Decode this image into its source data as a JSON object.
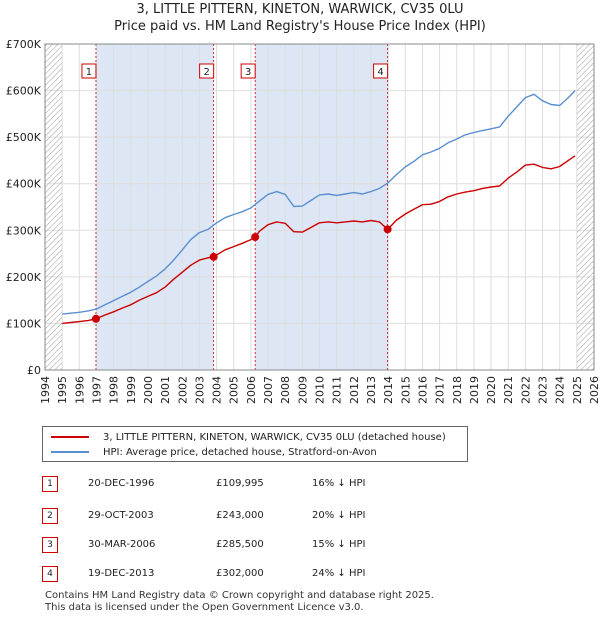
{
  "title_line1": "3, LITTLE PITTERN, KINETON, WARWICK, CV35 0LU",
  "title_line2": "Price paid vs. HM Land Registry's House Price Index (HPI)",
  "colors": {
    "price_paid": "#cc0000",
    "hpi": "#5a8fd0",
    "shade": "#dde6f5",
    "grid": "#dddddd"
  },
  "chart_data": {
    "type": "line",
    "xlim": [
      1994,
      2026
    ],
    "ylim": [
      0,
      700000
    ],
    "yticks": [
      0,
      100000,
      200000,
      300000,
      400000,
      500000,
      600000,
      700000
    ],
    "ytick_labels": [
      "£0",
      "£100K",
      "£200K",
      "£300K",
      "£400K",
      "£500K",
      "£600K",
      "£700K"
    ],
    "xticks": [
      1994,
      1995,
      1996,
      1997,
      1998,
      1999,
      2000,
      2001,
      2002,
      2003,
      2004,
      2005,
      2006,
      2007,
      2008,
      2009,
      2010,
      2011,
      2012,
      2013,
      2014,
      2015,
      2016,
      2017,
      2018,
      2019,
      2020,
      2021,
      2022,
      2023,
      2024,
      2025,
      2026
    ],
    "data_range": [
      1995,
      2025
    ],
    "shaded_spans": [
      [
        1996.97,
        2003.83
      ],
      [
        2006.25,
        2013.97
      ]
    ],
    "series": [
      {
        "name": "3, LITTLE PITTERN, KINETON, WARWICK, CV35 0LU (detached house)",
        "x": [
          1995.0,
          1995.5,
          1996.0,
          1996.5,
          1996.97,
          1997.5,
          1998.0,
          1998.5,
          1999.0,
          1999.5,
          2000.0,
          2000.5,
          2001.0,
          2001.5,
          2002.0,
          2002.5,
          2003.0,
          2003.5,
          2003.83,
          2004.5,
          2005.0,
          2005.5,
          2006.0,
          2006.25,
          2006.5,
          2007.0,
          2007.5,
          2008.0,
          2008.5,
          2009.0,
          2009.5,
          2010.0,
          2010.5,
          2011.0,
          2011.5,
          2012.0,
          2012.5,
          2013.0,
          2013.5,
          2013.97,
          2014.5,
          2015.0,
          2015.5,
          2016.0,
          2016.5,
          2017.0,
          2017.5,
          2018.0,
          2018.5,
          2019.0,
          2019.5,
          2020.0,
          2020.5,
          2021.0,
          2021.5,
          2022.0,
          2022.5,
          2023.0,
          2023.5,
          2024.0,
          2024.5,
          2024.9
        ],
        "values": [
          100000,
          102000,
          104000,
          106000,
          109995,
          118000,
          125000,
          133000,
          140000,
          150000,
          158000,
          166000,
          178000,
          195000,
          210000,
          225000,
          236000,
          241000,
          243000,
          258000,
          265000,
          272000,
          280000,
          285500,
          298000,
          312000,
          318000,
          315000,
          297000,
          296000,
          306000,
          316000,
          318000,
          316000,
          318000,
          320000,
          318000,
          321000,
          318000,
          302000,
          322000,
          335000,
          345000,
          355000,
          356000,
          362000,
          372000,
          378000,
          382000,
          385000,
          390000,
          393000,
          395000,
          412000,
          425000,
          440000,
          442000,
          435000,
          432000,
          437000,
          450000,
          460000
        ]
      },
      {
        "name": "HPI: Average price, detached house, Stratford-on-Avon",
        "x": [
          1995.0,
          1995.5,
          1996.0,
          1996.5,
          1997.0,
          1997.5,
          1998.0,
          1998.5,
          1999.0,
          1999.5,
          2000.0,
          2000.5,
          2001.0,
          2001.5,
          2002.0,
          2002.5,
          2003.0,
          2003.5,
          2004.0,
          2004.5,
          2005.0,
          2005.5,
          2006.0,
          2006.5,
          2007.0,
          2007.5,
          2008.0,
          2008.5,
          2009.0,
          2009.5,
          2010.0,
          2010.5,
          2011.0,
          2011.5,
          2012.0,
          2012.5,
          2013.0,
          2013.5,
          2014.0,
          2014.5,
          2015.0,
          2015.5,
          2016.0,
          2016.5,
          2017.0,
          2017.5,
          2018.0,
          2018.5,
          2019.0,
          2019.5,
          2020.0,
          2020.5,
          2021.0,
          2021.5,
          2022.0,
          2022.5,
          2023.0,
          2023.5,
          2024.0,
          2024.5,
          2024.9
        ],
        "values": [
          120000,
          122000,
          124000,
          127000,
          131000,
          140000,
          149000,
          158000,
          167000,
          178000,
          190000,
          202000,
          217000,
          236000,
          258000,
          280000,
          295000,
          302000,
          316000,
          327000,
          334000,
          340000,
          348000,
          363000,
          377000,
          383000,
          377000,
          351000,
          352000,
          364000,
          376000,
          378000,
          375000,
          378000,
          381000,
          378000,
          383000,
          390000,
          402000,
          420000,
          436000,
          448000,
          462000,
          468000,
          476000,
          488000,
          496000,
          505000,
          510000,
          514000,
          518000,
          522000,
          545000,
          565000,
          585000,
          592000,
          578000,
          570000,
          568000,
          585000,
          600000
        ]
      }
    ],
    "markers": [
      {
        "label": "1",
        "x": 1996.97,
        "price": 109995
      },
      {
        "label": "2",
        "x": 2003.83,
        "price": 243000
      },
      {
        "label": "3",
        "x": 2006.25,
        "price": 285500
      },
      {
        "label": "4",
        "x": 2013.97,
        "price": 302000
      }
    ]
  },
  "legend": {
    "items": [
      {
        "label": "3, LITTLE PITTERN, KINETON, WARWICK, CV35 0LU (detached house)"
      },
      {
        "label": "HPI: Average price, detached house, Stratford-on-Avon"
      }
    ]
  },
  "transactions": [
    {
      "num": "1",
      "date": "20-DEC-1996",
      "price": "£109,995",
      "hpi": "16% ↓ HPI"
    },
    {
      "num": "2",
      "date": "29-OCT-2003",
      "price": "£243,000",
      "hpi": "20% ↓ HPI"
    },
    {
      "num": "3",
      "date": "30-MAR-2006",
      "price": "£285,500",
      "hpi": "15% ↓ HPI"
    },
    {
      "num": "4",
      "date": "19-DEC-2013",
      "price": "£302,000",
      "hpi": "24% ↓ HPI"
    }
  ],
  "footer": {
    "line1": "Contains HM Land Registry data © Crown copyright and database right 2025.",
    "line2": "This data is licensed under the Open Government Licence v3.0."
  }
}
